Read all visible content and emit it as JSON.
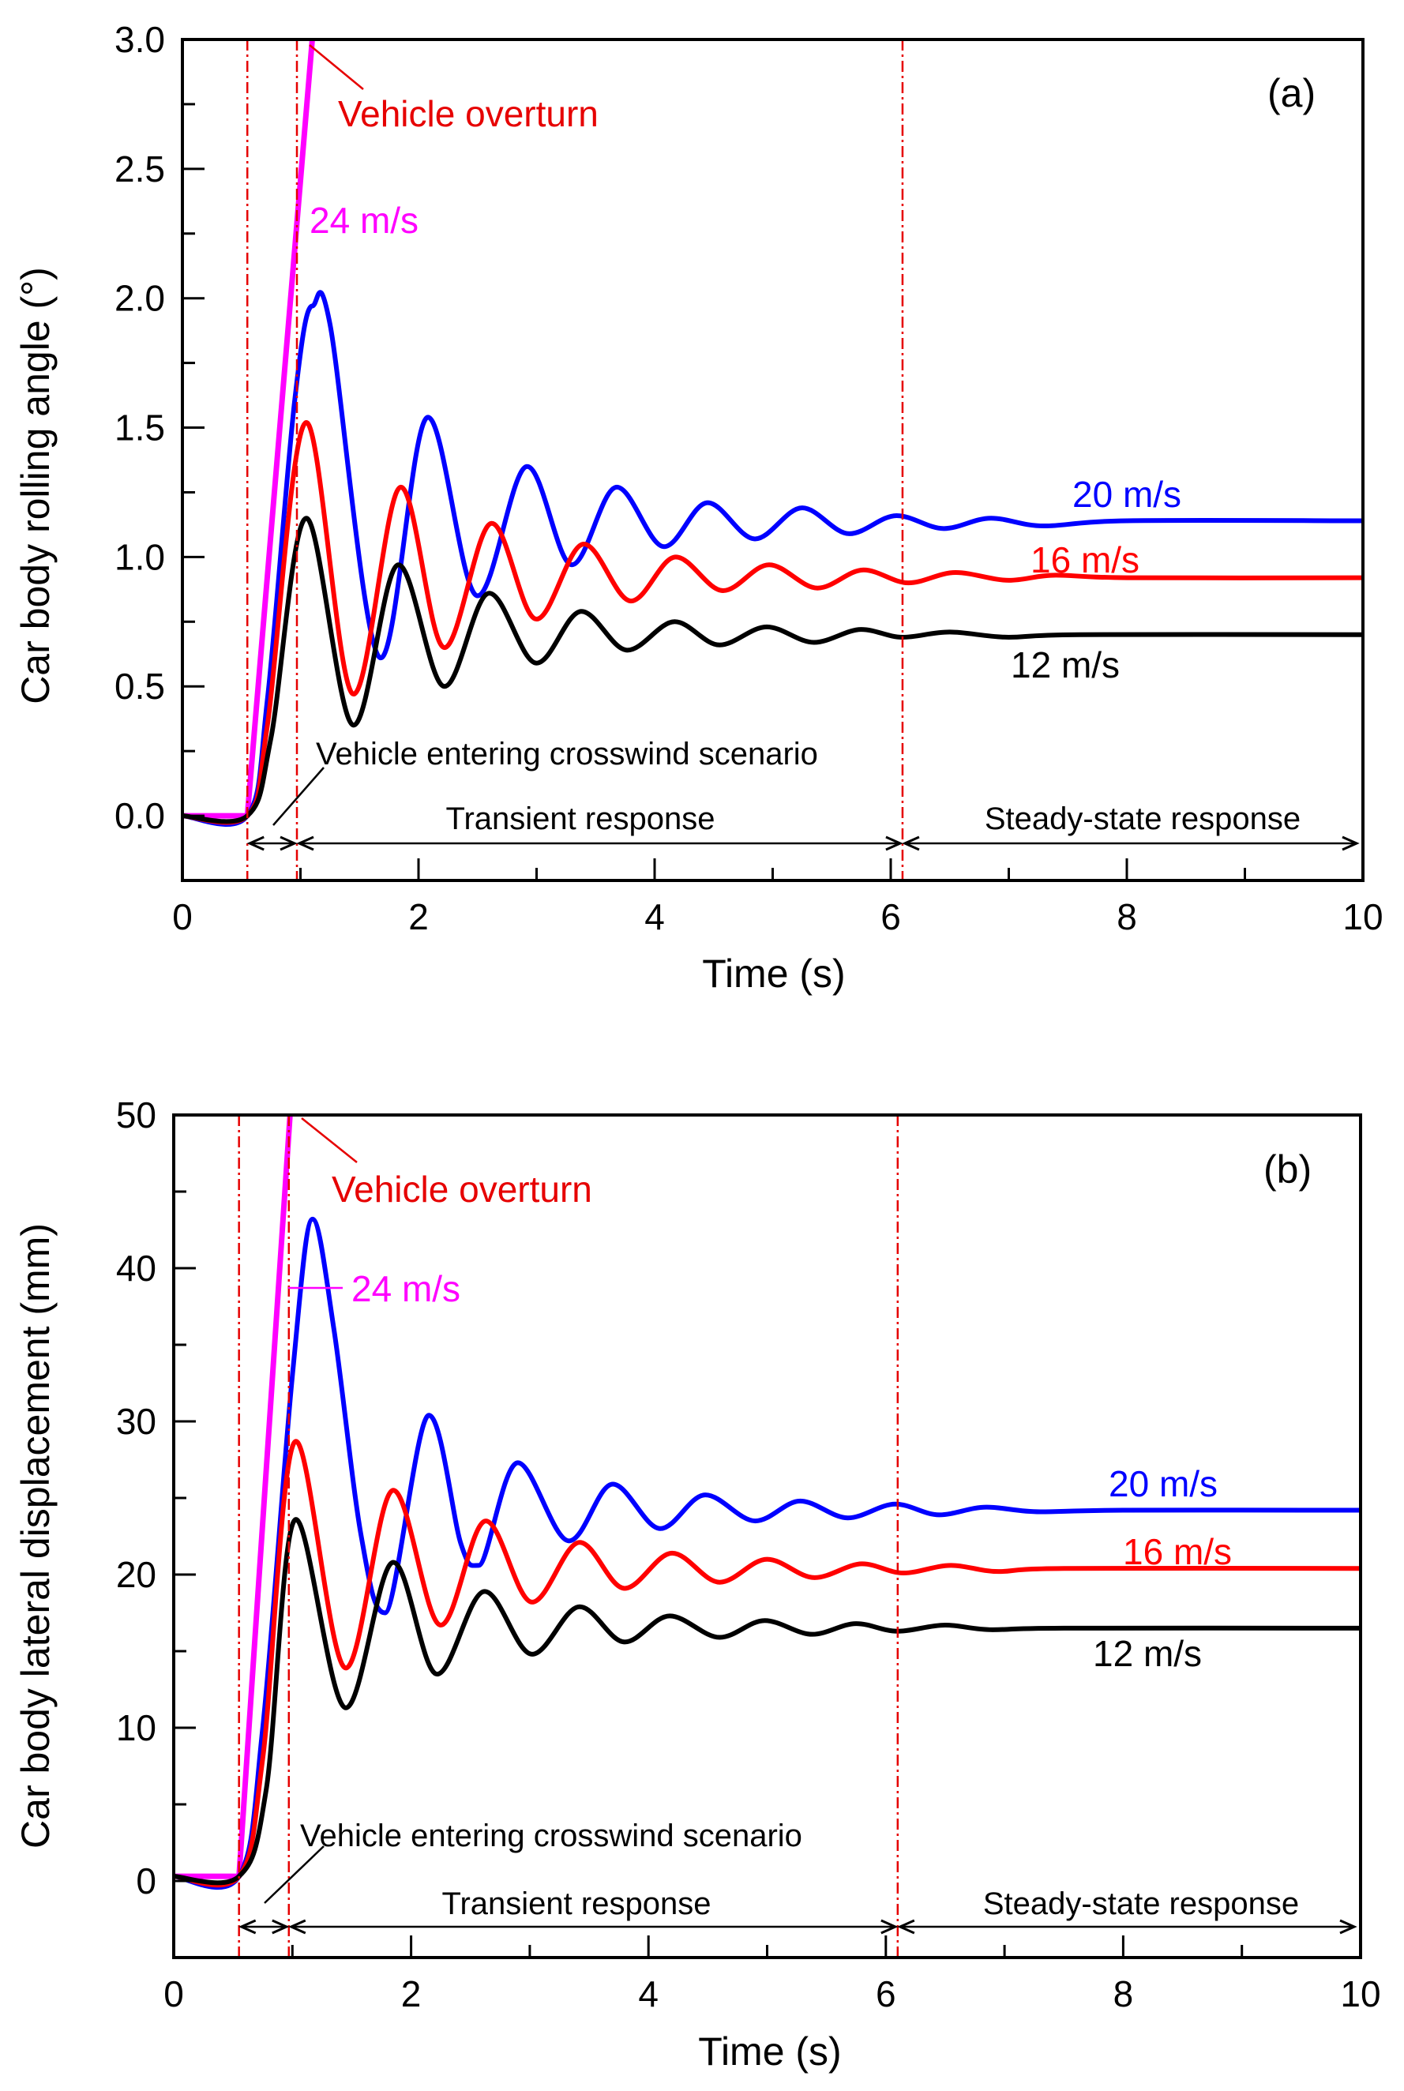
{
  "chart_data": [
    {
      "type": "line",
      "panel_label": "(a)",
      "xlabel": "Time (s)",
      "ylabel": "Car body rolling angle (°)",
      "xlim": [
        0,
        10
      ],
      "ylim": [
        -0.25,
        3.0
      ],
      "xticks": [
        0,
        2,
        4,
        6,
        8,
        10
      ],
      "xtick_labels": [
        "0",
        "2",
        "4",
        "6",
        "8",
        "10"
      ],
      "yticks": [
        0.0,
        0.5,
        1.0,
        1.5,
        2.0,
        2.5,
        3.0
      ],
      "ytick_labels": [
        "0.0",
        "0.5",
        "1.0",
        "1.5",
        "2.0",
        "2.5",
        "3.0"
      ],
      "grid": false,
      "vlines": [
        0.55,
        0.97,
        6.1
      ],
      "annotations": {
        "overturn": "Vehicle overturn",
        "entering": "Vehicle entering crosswind scenario",
        "transient": "Transient response",
        "steady": "Steady-state response"
      },
      "series": [
        {
          "name": "12 m/s",
          "color": "#000000",
          "points": [
            [
              0,
              0
            ],
            [
              0.55,
              0
            ],
            [
              0.75,
              0.3
            ],
            [
              1.05,
              1.15
            ],
            [
              1.45,
              0.35
            ],
            [
              1.83,
              0.97
            ],
            [
              2.22,
              0.5
            ],
            [
              2.6,
              0.86
            ],
            [
              3.0,
              0.59
            ],
            [
              3.38,
              0.79
            ],
            [
              3.77,
              0.64
            ],
            [
              4.17,
              0.75
            ],
            [
              4.55,
              0.66
            ],
            [
              4.95,
              0.73
            ],
            [
              5.35,
              0.67
            ],
            [
              5.75,
              0.72
            ],
            [
              6.1,
              0.69
            ],
            [
              6.5,
              0.71
            ],
            [
              7.0,
              0.69
            ],
            [
              7.6,
              0.7
            ],
            [
              10,
              0.7
            ]
          ]
        },
        {
          "name": "16 m/s",
          "color": "#ff0000",
          "points": [
            [
              0,
              0
            ],
            [
              0.55,
              0
            ],
            [
              0.72,
              0.35
            ],
            [
              1.05,
              1.52
            ],
            [
              1.45,
              0.47
            ],
            [
              1.85,
              1.27
            ],
            [
              2.22,
              0.65
            ],
            [
              2.62,
              1.13
            ],
            [
              3.0,
              0.76
            ],
            [
              3.4,
              1.05
            ],
            [
              3.8,
              0.83
            ],
            [
              4.18,
              1.0
            ],
            [
              4.58,
              0.87
            ],
            [
              4.97,
              0.97
            ],
            [
              5.38,
              0.88
            ],
            [
              5.77,
              0.95
            ],
            [
              6.15,
              0.9
            ],
            [
              6.55,
              0.94
            ],
            [
              7.0,
              0.91
            ],
            [
              7.4,
              0.93
            ],
            [
              8,
              0.92
            ],
            [
              10,
              0.92
            ]
          ]
        },
        {
          "name": "20 m/s",
          "color": "#0000ff",
          "points": [
            [
              0,
              0
            ],
            [
              0.55,
              0
            ],
            [
              0.72,
              0.45
            ],
            [
              0.95,
              1.6
            ],
            [
              1.1,
              1.97
            ],
            [
              1.25,
              1.9
            ],
            [
              1.68,
              0.61
            ],
            [
              2.08,
              1.54
            ],
            [
              2.5,
              0.85
            ],
            [
              2.92,
              1.35
            ],
            [
              3.3,
              0.97
            ],
            [
              3.68,
              1.27
            ],
            [
              4.08,
              1.04
            ],
            [
              4.45,
              1.21
            ],
            [
              4.85,
              1.07
            ],
            [
              5.25,
              1.19
            ],
            [
              5.65,
              1.09
            ],
            [
              6.05,
              1.16
            ],
            [
              6.45,
              1.11
            ],
            [
              6.85,
              1.15
            ],
            [
              7.3,
              1.12
            ],
            [
              8,
              1.14
            ],
            [
              10,
              1.14
            ]
          ]
        },
        {
          "name": "24 m/s",
          "color": "#ff00ff",
          "points": [
            [
              0,
              0
            ],
            [
              0.55,
              0
            ],
            [
              1.1,
              3.0
            ]
          ]
        }
      ]
    },
    {
      "type": "line",
      "panel_label": "(b)",
      "xlabel": "Time (s)",
      "ylabel": "Car body lateral displacement (mm)",
      "xlim": [
        0,
        10
      ],
      "ylim": [
        -5,
        50
      ],
      "xticks": [
        0,
        2,
        4,
        6,
        8,
        10
      ],
      "xtick_labels": [
        "0",
        "2",
        "4",
        "6",
        "8",
        "10"
      ],
      "yticks": [
        0,
        10,
        20,
        30,
        40,
        50
      ],
      "ytick_labels": [
        "0",
        "10",
        "20",
        "30",
        "40",
        "50"
      ],
      "grid": false,
      "vlines": [
        0.55,
        0.97,
        6.1
      ],
      "annotations": {
        "overturn": "Vehicle overturn",
        "entering": "Vehicle entering crosswind scenario",
        "transient": "Transient response",
        "steady": "Steady-state response"
      },
      "series": [
        {
          "name": "12 m/s",
          "color": "#000000",
          "points": [
            [
              0,
              0.3
            ],
            [
              0.55,
              0.3
            ],
            [
              0.78,
              6
            ],
            [
              1.03,
              23.6
            ],
            [
              1.45,
              11.3
            ],
            [
              1.85,
              20.8
            ],
            [
              2.22,
              13.5
            ],
            [
              2.62,
              18.9
            ],
            [
              3.02,
              14.8
            ],
            [
              3.42,
              17.9
            ],
            [
              3.8,
              15.6
            ],
            [
              4.18,
              17.3
            ],
            [
              4.6,
              15.9
            ],
            [
              4.98,
              17.0
            ],
            [
              5.38,
              16.1
            ],
            [
              5.75,
              16.8
            ],
            [
              6.1,
              16.3
            ],
            [
              6.5,
              16.7
            ],
            [
              6.9,
              16.4
            ],
            [
              7.5,
              16.5
            ],
            [
              10,
              16.5
            ]
          ]
        },
        {
          "name": "16 m/s",
          "color": "#ff0000",
          "points": [
            [
              0,
              0.3
            ],
            [
              0.55,
              0.3
            ],
            [
              0.75,
              8
            ],
            [
              1.03,
              28.7
            ],
            [
              1.45,
              13.9
            ],
            [
              1.85,
              25.5
            ],
            [
              2.25,
              16.7
            ],
            [
              2.63,
              23.5
            ],
            [
              3.02,
              18.2
            ],
            [
              3.42,
              22.1
            ],
            [
              3.8,
              19.1
            ],
            [
              4.2,
              21.4
            ],
            [
              4.6,
              19.5
            ],
            [
              5.0,
              21.0
            ],
            [
              5.4,
              19.8
            ],
            [
              5.8,
              20.7
            ],
            [
              6.15,
              20.1
            ],
            [
              6.55,
              20.6
            ],
            [
              6.95,
              20.2
            ],
            [
              7.5,
              20.4
            ],
            [
              10,
              20.4
            ]
          ]
        },
        {
          "name": "20 m/s",
          "color": "#0000ff",
          "points": [
            [
              0,
              0.3
            ],
            [
              0.55,
              0.3
            ],
            [
              0.75,
              10
            ],
            [
              1.0,
              33
            ],
            [
              1.17,
              43.2
            ],
            [
              1.35,
              36
            ],
            [
              1.58,
              22.5
            ],
            [
              1.78,
              17.5
            ],
            [
              2.15,
              30.4
            ],
            [
              2.42,
              22
            ],
            [
              2.57,
              20.6
            ],
            [
              2.9,
              27.3
            ],
            [
              3.33,
              22.2
            ],
            [
              3.7,
              25.9
            ],
            [
              4.1,
              23.0
            ],
            [
              4.48,
              25.2
            ],
            [
              4.9,
              23.5
            ],
            [
              5.28,
              24.8
            ],
            [
              5.68,
              23.7
            ],
            [
              6.08,
              24.6
            ],
            [
              6.45,
              23.9
            ],
            [
              6.85,
              24.4
            ],
            [
              7.3,
              24.1
            ],
            [
              8,
              24.2
            ],
            [
              10,
              24.2
            ]
          ]
        },
        {
          "name": "24 m/s",
          "color": "#ff00ff",
          "points": [
            [
              0,
              0.3
            ],
            [
              0.55,
              0.3
            ],
            [
              0.98,
              50
            ]
          ]
        }
      ]
    }
  ]
}
